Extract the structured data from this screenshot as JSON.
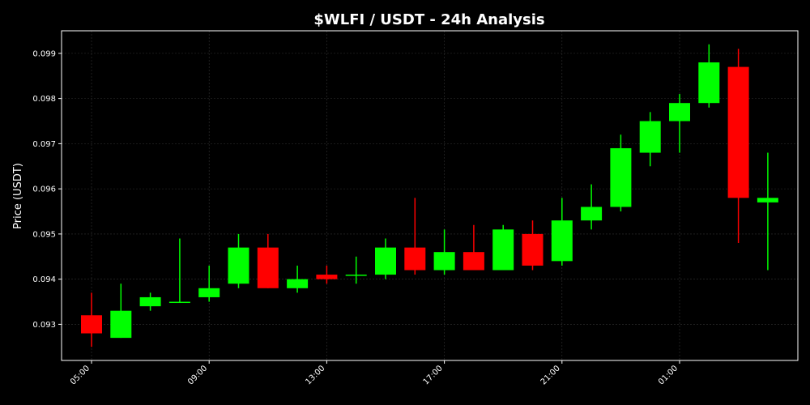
{
  "chart_data": {
    "type": "candlestick",
    "title": "$WLFI / USDT - 24h Analysis",
    "xlabel": "",
    "ylabel": "Price (USDT)",
    "ylim": [
      0.0922,
      0.0995
    ],
    "y_ticks": [
      0.093,
      0.094,
      0.095,
      0.096,
      0.097,
      0.098,
      0.099
    ],
    "y_tick_labels": [
      "0.093",
      "0.094",
      "0.095",
      "0.096",
      "0.097",
      "0.098",
      "0.099"
    ],
    "x_ticks": [
      "05:00",
      "09:00",
      "13:00",
      "17:00",
      "21:00",
      "01:00"
    ],
    "grid": true,
    "colors": {
      "up": "#00ff00",
      "down": "#ff0000",
      "background": "#000000",
      "grid": "#333333",
      "text": "#ffffff"
    },
    "candles": [
      {
        "time": "05:00",
        "open": 0.0932,
        "high": 0.0937,
        "low": 0.0925,
        "close": 0.0928
      },
      {
        "time": "06:00",
        "open": 0.0927,
        "high": 0.0939,
        "low": 0.0927,
        "close": 0.0933
      },
      {
        "time": "07:00",
        "open": 0.0934,
        "high": 0.0937,
        "low": 0.0933,
        "close": 0.0936
      },
      {
        "time": "08:00",
        "open": 0.0935,
        "high": 0.0949,
        "low": 0.0935,
        "close": 0.0935
      },
      {
        "time": "09:00",
        "open": 0.0936,
        "high": 0.0943,
        "low": 0.0935,
        "close": 0.0938
      },
      {
        "time": "10:00",
        "open": 0.0939,
        "high": 0.095,
        "low": 0.0938,
        "close": 0.0947
      },
      {
        "time": "11:00",
        "open": 0.0947,
        "high": 0.095,
        "low": 0.0938,
        "close": 0.0938
      },
      {
        "time": "12:00",
        "open": 0.0938,
        "high": 0.0943,
        "low": 0.0937,
        "close": 0.094
      },
      {
        "time": "13:00",
        "open": 0.0941,
        "high": 0.0943,
        "low": 0.0939,
        "close": 0.094
      },
      {
        "time": "14:00",
        "open": 0.0941,
        "high": 0.0945,
        "low": 0.0939,
        "close": 0.0941
      },
      {
        "time": "15:00",
        "open": 0.0941,
        "high": 0.0949,
        "low": 0.094,
        "close": 0.0947
      },
      {
        "time": "16:00",
        "open": 0.0947,
        "high": 0.0958,
        "low": 0.0941,
        "close": 0.0942
      },
      {
        "time": "17:00",
        "open": 0.0942,
        "high": 0.0951,
        "low": 0.0941,
        "close": 0.0946
      },
      {
        "time": "18:00",
        "open": 0.0946,
        "high": 0.0952,
        "low": 0.0942,
        "close": 0.0942
      },
      {
        "time": "19:00",
        "open": 0.0942,
        "high": 0.0952,
        "low": 0.0942,
        "close": 0.0951
      },
      {
        "time": "20:00",
        "open": 0.095,
        "high": 0.0953,
        "low": 0.0942,
        "close": 0.0943
      },
      {
        "time": "21:00",
        "open": 0.0944,
        "high": 0.0958,
        "low": 0.0943,
        "close": 0.0953
      },
      {
        "time": "22:00",
        "open": 0.0953,
        "high": 0.0961,
        "low": 0.0951,
        "close": 0.0956
      },
      {
        "time": "23:00",
        "open": 0.0956,
        "high": 0.0972,
        "low": 0.0955,
        "close": 0.0969
      },
      {
        "time": "00:00",
        "open": 0.0968,
        "high": 0.0977,
        "low": 0.0965,
        "close": 0.0975
      },
      {
        "time": "01:00",
        "open": 0.0975,
        "high": 0.0981,
        "low": 0.0968,
        "close": 0.0979
      },
      {
        "time": "02:00",
        "open": 0.0979,
        "high": 0.0992,
        "low": 0.0978,
        "close": 0.0988
      },
      {
        "time": "03:00",
        "open": 0.0987,
        "high": 0.0991,
        "low": 0.0948,
        "close": 0.0958
      },
      {
        "time": "04:00",
        "open": 0.0957,
        "high": 0.0968,
        "low": 0.0942,
        "close": 0.0958
      }
    ]
  }
}
